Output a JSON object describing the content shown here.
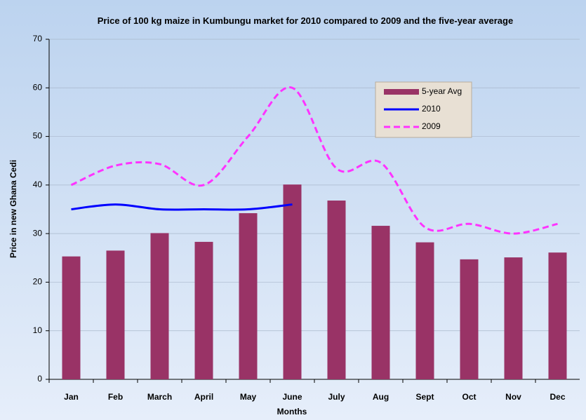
{
  "chart_data": {
    "type": "bar_line",
    "title": "Price of 100 kg maize in Kumbungu market for 2010 compared to 2009 and the five-year average",
    "xlabel": "Months",
    "ylabel": "Price in new Ghana Cedi",
    "categories": [
      "Jan",
      "Feb",
      "March",
      "April",
      "May",
      "June",
      "July",
      "Aug",
      "Sept",
      "Oct",
      "Nov",
      "Dec"
    ],
    "series": [
      {
        "name": "5-year Avg",
        "type": "bar",
        "color": "#993366",
        "values": [
          25.3,
          26.5,
          30.1,
          28.3,
          34.2,
          40.1,
          36.8,
          31.6,
          28.2,
          24.7,
          25.1,
          26.1
        ]
      },
      {
        "name": "2010",
        "type": "line",
        "color": "#0000ff",
        "dash": false,
        "values": [
          35,
          36,
          35,
          35,
          35,
          36,
          null,
          null,
          null,
          null,
          null,
          null
        ]
      },
      {
        "name": "2009",
        "type": "line",
        "color": "#ff33ff",
        "dash": true,
        "values": [
          40,
          44,
          44.3,
          40,
          50,
          60,
          43.4,
          44.6,
          31.3,
          32,
          30,
          32
        ]
      }
    ],
    "ylim": [
      0,
      70
    ],
    "yticks": [
      0,
      10,
      20,
      30,
      40,
      50,
      60,
      70
    ],
    "grid": true,
    "legend": "upper right"
  }
}
